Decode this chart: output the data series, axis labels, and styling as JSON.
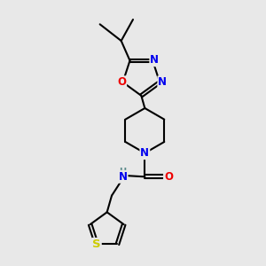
{
  "background_color": "#e8e8e8",
  "bond_color": "#000000",
  "atom_colors": {
    "N": "#0000ee",
    "O": "#ee0000",
    "S": "#cccc00",
    "H": "#5a8a8a",
    "C": "#000000"
  },
  "figure_size": [
    3.0,
    3.0
  ],
  "dpi": 100
}
